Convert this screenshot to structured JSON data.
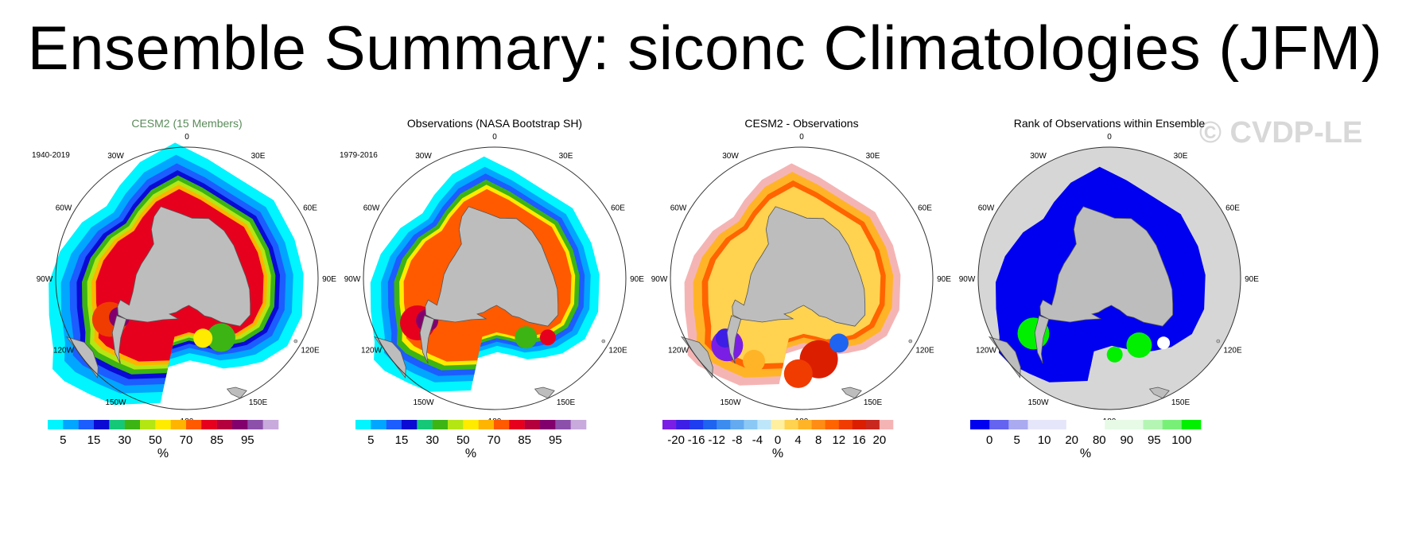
{
  "title": "Ensemble Summary: siconc Climatologies (JFM)",
  "watermark": "© CVDP-LE",
  "colors": {
    "title_green": "#5a8a5a",
    "land": "#bdbdbd",
    "ocean_rank": "#d6d6d6"
  },
  "lon_labels": [
    "0",
    "30E",
    "60E",
    "90E",
    "120E",
    "150E",
    "180",
    "150W",
    "120W",
    "90W",
    "60W",
    "30W"
  ],
  "chart_data": [
    {
      "type": "map",
      "title": "CESM2 (15 Members)",
      "period": "1940-2019",
      "field": "ice",
      "colorbar": {
        "colors": [
          "#00f5ff",
          "#00a6ff",
          "#1c5dff",
          "#0a0ad4",
          "#14c878",
          "#3cb414",
          "#b4e614",
          "#ffeb00",
          "#ffb400",
          "#ff5a00",
          "#e6001e",
          "#b4003c",
          "#82006e",
          "#8c50aa",
          "#c8aadc"
        ],
        "labels": [
          "5",
          "15",
          "30",
          "50",
          "70",
          "85",
          "95"
        ],
        "unit": "%"
      }
    },
    {
      "type": "map",
      "title": "Observations (NASA Bootstrap SH)",
      "period": "1979-2016",
      "field": "ice_obs",
      "colorbar": {
        "colors": [
          "#00f5ff",
          "#00a6ff",
          "#1c5dff",
          "#0a0ad4",
          "#14c878",
          "#3cb414",
          "#b4e614",
          "#ffeb00",
          "#ffb400",
          "#ff5a00",
          "#e6001e",
          "#b4003c",
          "#82006e",
          "#8c50aa",
          "#c8aadc"
        ],
        "labels": [
          "5",
          "15",
          "30",
          "50",
          "70",
          "85",
          "95"
        ],
        "unit": "%"
      }
    },
    {
      "type": "map",
      "title": "CESM2 - Observations",
      "period": "",
      "field": "diff",
      "colorbar": {
        "colors": [
          "#7a1ee6",
          "#3c1ee6",
          "#1e3cf0",
          "#1e64f0",
          "#3c8cf0",
          "#64aaf0",
          "#8cc8f5",
          "#bee6fa",
          "#fff0a0",
          "#ffd250",
          "#ffb428",
          "#ff8c14",
          "#ff6400",
          "#f03c00",
          "#dc1e00",
          "#c8281e",
          "#f5b4b4"
        ],
        "labels": [
          "-20",
          "-16",
          "-12",
          "-8",
          "-4",
          "0",
          "4",
          "8",
          "12",
          "16",
          "20"
        ],
        "unit": "%"
      }
    },
    {
      "type": "map",
      "title": "Rank of Observations within Ensemble",
      "period": "",
      "field": "rank",
      "colorbar": {
        "colors": [
          "#0000f0",
          "#6464f0",
          "#aaaaf0",
          "#e6e6fa",
          "#e6e6fa",
          "#ffffff",
          "#ffffff",
          "#e6fae6",
          "#e6fae6",
          "#b4f5b4",
          "#78f078",
          "#00f000"
        ],
        "labels": [
          "0",
          "5",
          "10",
          "20",
          "80",
          "90",
          "95",
          "100"
        ],
        "unit": "%"
      }
    }
  ]
}
